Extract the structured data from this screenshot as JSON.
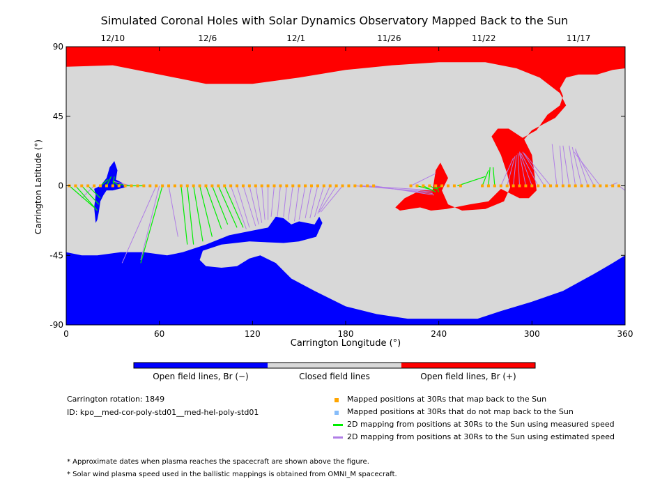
{
  "title": "Simulated Coronal Holes with Solar Dynamics Observatory Mapped Back to the Sun",
  "chart_data": {
    "type": "map",
    "title": "Simulated Coronal Holes with Solar Dynamics Observatory Mapped Back to the Sun",
    "xlabel": "Carrington Longitude (°)",
    "ylabel": "Carrington Latitude (°)",
    "xlim": [
      0,
      360
    ],
    "ylim": [
      -90,
      90
    ],
    "x_ticks": [
      0,
      60,
      120,
      180,
      240,
      300,
      360
    ],
    "y_ticks": [
      90,
      45,
      0,
      -45,
      -90
    ],
    "top_axis": {
      "ticks": [
        {
          "label": "12/10",
          "lon": 30
        },
        {
          "label": "12/6",
          "lon": 91
        },
        {
          "label": "12/1",
          "lon": 148
        },
        {
          "label": "11/26",
          "lon": 208
        },
        {
          "label": "11/22",
          "lon": 269
        },
        {
          "label": "11/17",
          "lon": 330
        }
      ]
    },
    "regions": {
      "north_positive_hole": [
        [
          0,
          77
        ],
        [
          30,
          78
        ],
        [
          60,
          72
        ],
        [
          90,
          66
        ],
        [
          120,
          66
        ],
        [
          150,
          70
        ],
        [
          180,
          75
        ],
        [
          210,
          78
        ],
        [
          240,
          80
        ],
        [
          270,
          80
        ],
        [
          290,
          76
        ],
        [
          305,
          70
        ],
        [
          318,
          60
        ],
        [
          322,
          52
        ],
        [
          315,
          44
        ],
        [
          300,
          36
        ],
        [
          295,
          30
        ],
        [
          300,
          20
        ],
        [
          303,
          -3
        ],
        [
          298,
          -8
        ],
        [
          292,
          -8
        ],
        [
          280,
          -2
        ],
        [
          272,
          -10
        ],
        [
          260,
          -12
        ],
        [
          245,
          -15
        ],
        [
          235,
          -16
        ],
        [
          228,
          -14
        ],
        [
          215,
          -16
        ],
        [
          212,
          -14
        ],
        [
          218,
          -8
        ],
        [
          228,
          -3
        ],
        [
          236,
          -3
        ],
        [
          238,
          10
        ],
        [
          241,
          15
        ],
        [
          246,
          5
        ],
        [
          242,
          -3
        ],
        [
          246,
          -12
        ],
        [
          255,
          -16
        ],
        [
          270,
          -15
        ],
        [
          282,
          -10
        ],
        [
          286,
          -1
        ],
        [
          284,
          8
        ],
        [
          280,
          20
        ],
        [
          274,
          32
        ],
        [
          278,
          37
        ],
        [
          285,
          37
        ],
        [
          294,
          31
        ],
        [
          303,
          36
        ],
        [
          310,
          46
        ],
        [
          318,
          52
        ],
        [
          320,
          58
        ],
        [
          318,
          63
        ],
        [
          322,
          70
        ],
        [
          330,
          72
        ],
        [
          342,
          72
        ],
        [
          352,
          75
        ],
        [
          360,
          76
        ],
        [
          360,
          90
        ],
        [
          0,
          90
        ]
      ],
      "south_negative_hole": [
        [
          0,
          -43
        ],
        [
          10,
          -45
        ],
        [
          20,
          -45
        ],
        [
          35,
          -43
        ],
        [
          50,
          -43
        ],
        [
          65,
          -45
        ],
        [
          75,
          -43
        ],
        [
          90,
          -38
        ],
        [
          105,
          -32
        ],
        [
          120,
          -29
        ],
        [
          130,
          -27
        ],
        [
          135,
          -20
        ],
        [
          140,
          -21
        ],
        [
          145,
          -25
        ],
        [
          150,
          -23
        ],
        [
          160,
          -25
        ],
        [
          163,
          -20
        ],
        [
          165,
          -24
        ],
        [
          161,
          -33
        ],
        [
          150,
          -36
        ],
        [
          140,
          -37
        ],
        [
          118,
          -36
        ],
        [
          100,
          -38
        ],
        [
          88,
          -42
        ],
        [
          86,
          -48
        ],
        [
          90,
          -52
        ],
        [
          100,
          -53
        ],
        [
          110,
          -52
        ],
        [
          118,
          -47
        ],
        [
          125,
          -45
        ],
        [
          135,
          -50
        ],
        [
          145,
          -60
        ],
        [
          160,
          -68
        ],
        [
          180,
          -78
        ],
        [
          200,
          -83
        ],
        [
          220,
          -86
        ],
        [
          240,
          -86
        ],
        [
          265,
          -86
        ],
        [
          280,
          -81
        ],
        [
          300,
          -75
        ],
        [
          320,
          -68
        ],
        [
          340,
          -57
        ],
        [
          352,
          -50
        ],
        [
          360,
          -45
        ],
        [
          360,
          -90
        ],
        [
          0,
          -90
        ]
      ],
      "small_negative_hole": [
        [
          18,
          -2
        ],
        [
          22,
          0
        ],
        [
          26,
          5
        ],
        [
          28,
          12
        ],
        [
          31,
          16
        ],
        [
          33,
          10
        ],
        [
          32,
          4
        ],
        [
          36,
          2
        ],
        [
          38,
          -1
        ],
        [
          34,
          -2
        ],
        [
          30,
          -3
        ],
        [
          26,
          -3
        ],
        [
          24,
          -6
        ],
        [
          22,
          -10
        ],
        [
          21,
          -17
        ],
        [
          20,
          -22
        ],
        [
          19,
          -24
        ],
        [
          18,
          -14
        ],
        [
          19,
          -6
        ]
      ]
    },
    "open_closed_labels": {
      "negative": "Open field lines, Br (−)",
      "closed": "Closed field lines",
      "positive": "Open field lines, Br (+)"
    },
    "colors": {
      "positive": "#ff0000",
      "negative": "#0000ff",
      "closed": "#d8d8d8",
      "mapped": "#ffa500",
      "unmapped": "#87bdfa",
      "measured": "#00ee00",
      "estimated": "#b07ee6"
    },
    "mapping_points_lat": 0,
    "mapping_points_lon": [
      2,
      6,
      10,
      14,
      18,
      22,
      26,
      30,
      34,
      38,
      42,
      46,
      50,
      54,
      58,
      62,
      66,
      70,
      74,
      78,
      82,
      86,
      90,
      94,
      98,
      102,
      106,
      110,
      114,
      118,
      122,
      126,
      130,
      134,
      138,
      142,
      146,
      150,
      154,
      158,
      162,
      166,
      170,
      174,
      178,
      182,
      186,
      190,
      194,
      198,
      222,
      226,
      230,
      234,
      238,
      242,
      246,
      250,
      254,
      268,
      272,
      276,
      280,
      284,
      288,
      292,
      296,
      300,
      304,
      308,
      312,
      316,
      320,
      324,
      328,
      332,
      336,
      340,
      344,
      348,
      352,
      356
    ],
    "measured_lines": [
      {
        "from": [
          2,
          0
        ],
        "to": [
          18,
          -14
        ]
      },
      {
        "from": [
          6,
          0
        ],
        "to": [
          20,
          -16
        ]
      },
      {
        "from": [
          10,
          0
        ],
        "to": [
          21,
          -12
        ]
      },
      {
        "from": [
          14,
          0
        ],
        "to": [
          22,
          -8
        ]
      },
      {
        "from": [
          22,
          0
        ],
        "to": [
          27,
          4
        ]
      },
      {
        "from": [
          26,
          0
        ],
        "to": [
          29,
          6
        ]
      },
      {
        "from": [
          30,
          0
        ],
        "to": [
          31,
          6
        ]
      },
      {
        "from": [
          34,
          0
        ],
        "to": [
          30,
          3
        ]
      },
      {
        "from": [
          40,
          0
        ],
        "to": [
          34,
          1
        ]
      },
      {
        "from": [
          50,
          0
        ],
        "to": [
          38,
          0
        ]
      },
      {
        "from": [
          62,
          0
        ],
        "to": [
          48,
          -50
        ]
      },
      {
        "from": [
          74,
          0
        ],
        "to": [
          78,
          -38
        ]
      },
      {
        "from": [
          78,
          0
        ],
        "to": [
          82,
          -38
        ]
      },
      {
        "from": [
          82,
          0
        ],
        "to": [
          88,
          -36
        ]
      },
      {
        "from": [
          86,
          0
        ],
        "to": [
          94,
          -33
        ]
      },
      {
        "from": [
          90,
          0
        ],
        "to": [
          100,
          -28
        ]
      },
      {
        "from": [
          94,
          0
        ],
        "to": [
          104,
          -25
        ]
      },
      {
        "from": [
          98,
          0
        ],
        "to": [
          110,
          -27
        ]
      },
      {
        "from": [
          102,
          0
        ],
        "to": [
          114,
          -27
        ]
      },
      {
        "from": [
          226,
          0
        ],
        "to": [
          237,
          -3
        ]
      },
      {
        "from": [
          230,
          0
        ],
        "to": [
          238,
          -4
        ]
      },
      {
        "from": [
          234,
          0
        ],
        "to": [
          238,
          -2
        ]
      },
      {
        "from": [
          238,
          0
        ],
        "to": [
          240,
          -4
        ]
      },
      {
        "from": [
          242,
          0
        ],
        "to": [
          238,
          -2
        ]
      },
      {
        "from": [
          268,
          0
        ],
        "to": [
          272,
          10
        ]
      },
      {
        "from": [
          272,
          0
        ],
        "to": [
          273,
          12
        ]
      },
      {
        "from": [
          276,
          0
        ],
        "to": [
          275,
          12
        ]
      },
      {
        "from": [
          252,
          0
        ],
        "to": [
          270,
          6
        ]
      }
    ],
    "estimated_lines": [
      {
        "from": [
          18,
          0
        ],
        "to": [
          10,
          -8
        ]
      },
      {
        "from": [
          42,
          0
        ],
        "to": [
          30,
          3
        ]
      },
      {
        "from": [
          58,
          0
        ],
        "to": [
          36,
          -50
        ]
      },
      {
        "from": [
          60,
          0
        ],
        "to": [
          48,
          -48
        ]
      },
      {
        "from": [
          66,
          0
        ],
        "to": [
          72,
          -33
        ]
      },
      {
        "from": [
          106,
          0
        ],
        "to": [
          116,
          -28
        ]
      },
      {
        "from": [
          110,
          0
        ],
        "to": [
          118,
          -27
        ]
      },
      {
        "from": [
          114,
          0
        ],
        "to": [
          122,
          -26
        ]
      },
      {
        "from": [
          118,
          0
        ],
        "to": [
          124,
          -25
        ]
      },
      {
        "from": [
          122,
          0
        ],
        "to": [
          126,
          -24
        ]
      },
      {
        "from": [
          126,
          0
        ],
        "to": [
          128,
          -22
        ]
      },
      {
        "from": [
          130,
          0
        ],
        "to": [
          130,
          -22
        ]
      },
      {
        "from": [
          134,
          0
        ],
        "to": [
          132,
          -20
        ]
      },
      {
        "from": [
          138,
          0
        ],
        "to": [
          136,
          -20
        ]
      },
      {
        "from": [
          142,
          0
        ],
        "to": [
          140,
          -20
        ]
      },
      {
        "from": [
          146,
          0
        ],
        "to": [
          143,
          -22
        ]
      },
      {
        "from": [
          150,
          0
        ],
        "to": [
          147,
          -23
        ]
      },
      {
        "from": [
          154,
          0
        ],
        "to": [
          150,
          -22
        ]
      },
      {
        "from": [
          158,
          0
        ],
        "to": [
          154,
          -21
        ]
      },
      {
        "from": [
          162,
          0
        ],
        "to": [
          157,
          -21
        ]
      },
      {
        "from": [
          166,
          0
        ],
        "to": [
          160,
          -20
        ]
      },
      {
        "from": [
          170,
          0
        ],
        "to": [
          162,
          -18
        ]
      },
      {
        "from": [
          174,
          0
        ],
        "to": [
          163,
          -17
        ]
      },
      {
        "from": [
          178,
          0
        ],
        "to": [
          164,
          -17
        ]
      },
      {
        "from": [
          186,
          0
        ],
        "to": [
          236,
          -4
        ]
      },
      {
        "from": [
          190,
          0
        ],
        "to": [
          237,
          -3
        ]
      },
      {
        "from": [
          194,
          0
        ],
        "to": [
          236,
          -5
        ]
      },
      {
        "from": [
          198,
          0
        ],
        "to": [
          237,
          -6
        ]
      },
      {
        "from": [
          222,
          0
        ],
        "to": [
          238,
          8
        ]
      },
      {
        "from": [
          280,
          0
        ],
        "to": [
          288,
          18
        ]
      },
      {
        "from": [
          284,
          0
        ],
        "to": [
          289,
          19
        ]
      },
      {
        "from": [
          288,
          0
        ],
        "to": [
          290,
          20
        ]
      },
      {
        "from": [
          292,
          0
        ],
        "to": [
          291,
          21
        ]
      },
      {
        "from": [
          296,
          0
        ],
        "to": [
          292,
          21
        ]
      },
      {
        "from": [
          300,
          0
        ],
        "to": [
          292,
          22
        ]
      },
      {
        "from": [
          304,
          0
        ],
        "to": [
          293,
          21
        ]
      },
      {
        "from": [
          308,
          0
        ],
        "to": [
          294,
          22
        ]
      },
      {
        "from": [
          312,
          0
        ],
        "to": [
          295,
          21
        ]
      },
      {
        "from": [
          316,
          0
        ],
        "to": [
          313,
          27
        ]
      },
      {
        "from": [
          320,
          0
        ],
        "to": [
          318,
          26
        ]
      },
      {
        "from": [
          324,
          0
        ],
        "to": [
          320,
          26
        ]
      },
      {
        "from": [
          328,
          0
        ],
        "to": [
          324,
          26
        ]
      },
      {
        "from": [
          332,
          0
        ],
        "to": [
          326,
          25
        ]
      },
      {
        "from": [
          336,
          0
        ],
        "to": [
          328,
          24
        ]
      },
      {
        "from": [
          340,
          0
        ],
        "to": [
          328,
          23
        ]
      },
      {
        "from": [
          344,
          0
        ],
        "to": [
          327,
          22
        ]
      },
      {
        "from": [
          350,
          0
        ],
        "to": [
          355,
          2
        ]
      },
      {
        "from": [
          356,
          0
        ],
        "to": [
          360,
          -3
        ]
      }
    ]
  },
  "colorbar": {
    "negative_label": "Open field lines, Br (−)",
    "closed_label": "Closed field lines",
    "positive_label": "Open field lines, Br (+)"
  },
  "info": {
    "rotation": "Carrington rotation: 1849",
    "id": "ID: kpo__med-cor-poly-std01__med-hel-poly-std01"
  },
  "legend": [
    {
      "label": "Mapped positions at 30Rs that map back to the Sun",
      "kind": "square",
      "color": "#ffa500"
    },
    {
      "label": "Mapped positions at 30Rs that do not map back to the Sun",
      "kind": "square",
      "color": "#87bdfa"
    },
    {
      "label": "2D mapping from positions at 30Rs to the Sun using measured speed",
      "kind": "line",
      "color": "#00ee00"
    },
    {
      "label": "2D mapping from positions at 30Rs to the Sun using estimated speed",
      "kind": "line",
      "color": "#b07ee6"
    }
  ],
  "notes": [
    "* Approximate dates when plasma reaches the spacecraft are shown above the figure.",
    "* Solar wind plasma speed used in the ballistic mappings is obtained from OMNI_M spacecraft."
  ]
}
